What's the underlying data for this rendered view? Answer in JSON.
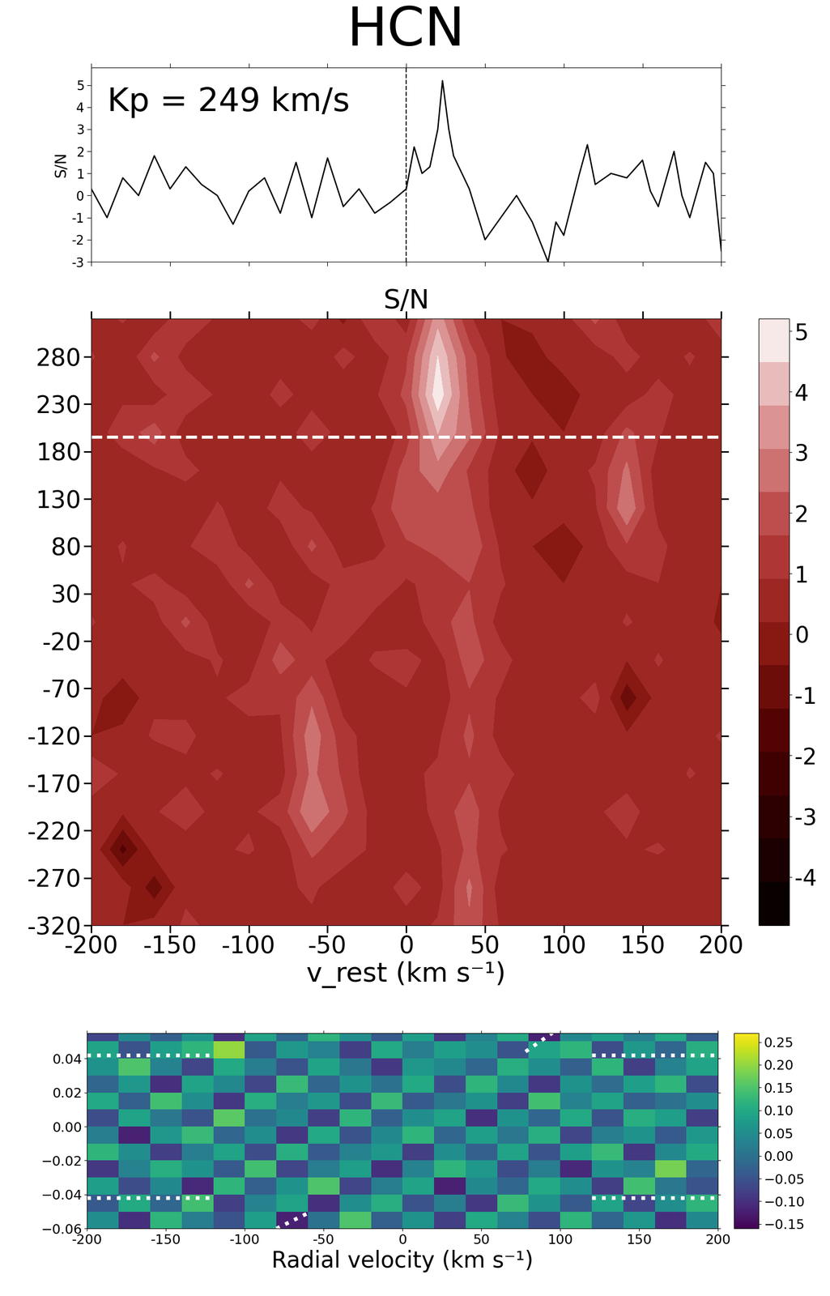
{
  "chart_data": [
    {
      "type": "line",
      "title": "HCN",
      "y_label": "S/N",
      "annotations": [
        "Kp = 249 km/s"
      ],
      "x": [
        -200,
        -190,
        -180,
        -170,
        -160,
        -150,
        -140,
        -130,
        -120,
        -110,
        -100,
        -90,
        -80,
        -70,
        -60,
        -50,
        -40,
        -30,
        -20,
        -10,
        0,
        5,
        10,
        15,
        20,
        23,
        27,
        30,
        40,
        50,
        60,
        70,
        80,
        90,
        95,
        100,
        110,
        115,
        120,
        130,
        140,
        150,
        155,
        160,
        170,
        175,
        180,
        190,
        195,
        200
      ],
      "values": [
        0.3,
        -1.0,
        0.8,
        0.0,
        1.8,
        0.3,
        1.3,
        0.5,
        0.0,
        -1.3,
        0.2,
        0.8,
        -0.8,
        1.5,
        -1.0,
        1.7,
        -0.5,
        0.3,
        -0.8,
        -0.3,
        0.3,
        2.2,
        1.0,
        1.3,
        3.0,
        5.2,
        3.0,
        1.8,
        0.3,
        -2.0,
        -1.0,
        0.0,
        -1.2,
        -3.0,
        -1.2,
        -1.8,
        1.0,
        2.3,
        0.5,
        1.0,
        0.8,
        1.6,
        0.2,
        -0.5,
        2.0,
        0.0,
        -1.0,
        1.5,
        1.0,
        -2.5
      ],
      "color": "#000000",
      "v_marker": 0,
      "xlim": [
        -200,
        200
      ],
      "xticks": [
        -200,
        -150,
        -100,
        -50,
        0,
        50,
        100,
        150,
        200
      ],
      "ylim": [
        -3,
        5.8
      ],
      "yticks": [
        -3,
        -2,
        -1,
        0,
        1,
        2,
        3,
        4,
        5
      ],
      "tick_labels": "y"
    },
    {
      "type": "contour",
      "title": "S/N",
      "x_label": "v_rest (km s⁻¹)",
      "x": [
        -200,
        -180,
        -160,
        -140,
        -120,
        -100,
        -80,
        -60,
        -40,
        -20,
        0,
        20,
        40,
        60,
        80,
        100,
        120,
        140,
        160,
        180,
        200
      ],
      "y": [
        320,
        280,
        240,
        200,
        160,
        120,
        80,
        40,
        0,
        -40,
        -80,
        -120,
        -160,
        -200,
        -240,
        -280,
        -320
      ],
      "cells": [
        [
          0.5,
          1.0,
          0.3,
          1.5,
          0.8,
          0.2,
          0.5,
          1.2,
          0.0,
          1.6,
          0.5,
          3.5,
          1.0,
          0.2,
          0.5,
          0.6,
          1.8,
          0.4,
          0.8,
          0.3,
          1.5
        ],
        [
          1.0,
          0.2,
          1.8,
          0.6,
          0.3,
          0.9,
          0.5,
          0.2,
          1.2,
          0.4,
          1.5,
          4.5,
          2.0,
          0.3,
          -0.3,
          0.8,
          0.5,
          1.2,
          0.5,
          1.0,
          0.4
        ],
        [
          0.3,
          0.8,
          0.5,
          1.5,
          0.8,
          0.3,
          1.2,
          0.5,
          0.3,
          0.8,
          1.8,
          5.0,
          2.2,
          0.5,
          0.2,
          -0.5,
          0.8,
          0.5,
          1.2,
          0.6,
          0.8
        ],
        [
          0.6,
          1.2,
          2.0,
          0.4,
          0.2,
          0.6,
          0.3,
          1.5,
          0.5,
          0.2,
          1.2,
          3.8,
          2.5,
          0.8,
          0.3,
          0.2,
          0.5,
          1.8,
          1.0,
          0.3,
          0.5
        ],
        [
          0.2,
          0.5,
          0.8,
          1.2,
          0.5,
          0.2,
          0.8,
          0.3,
          0.6,
          0.4,
          2.0,
          2.8,
          1.5,
          0.5,
          -0.2,
          0.6,
          1.0,
          2.5,
          0.4,
          0.2,
          0.8
        ],
        [
          0.8,
          0.3,
          0.5,
          0.2,
          1.0,
          0.5,
          1.2,
          0.8,
          0.2,
          1.0,
          2.2,
          2.0,
          1.8,
          0.4,
          0.3,
          0.5,
          0.8,
          3.0,
          0.6,
          0.5,
          0.3
        ],
        [
          0.4,
          1.0,
          0.2,
          0.8,
          1.5,
          0.6,
          0.3,
          1.8,
          0.5,
          0.6,
          1.5,
          1.8,
          2.2,
          0.8,
          0.2,
          -0.3,
          0.5,
          1.5,
          1.2,
          0.2,
          0.6
        ],
        [
          0.5,
          0.8,
          1.2,
          0.5,
          0.3,
          1.8,
          0.6,
          0.5,
          1.2,
          1.5,
          0.8,
          1.2,
          1.6,
          1.0,
          0.4,
          0.2,
          0.8,
          0.6,
          0.9,
          0.4,
          0.2
        ],
        [
          1.0,
          0.3,
          0.6,
          1.8,
          0.5,
          0.2,
          1.2,
          0.8,
          1.5,
          0.6,
          0.2,
          1.5,
          1.8,
          0.6,
          0.8,
          0.5,
          0.3,
          1.0,
          0.5,
          0.8,
          0.0
        ],
        [
          0.3,
          0.8,
          0.5,
          0.6,
          1.0,
          0.5,
          2.0,
          1.2,
          0.5,
          1.0,
          1.2,
          0.6,
          2.0,
          1.2,
          0.4,
          0.8,
          0.5,
          0.2,
          1.0,
          0.4,
          0.6
        ],
        [
          0.6,
          -0.5,
          0.8,
          0.5,
          0.8,
          1.2,
          1.0,
          2.2,
          0.6,
          0.5,
          0.8,
          0.5,
          1.5,
          0.8,
          0.3,
          0.6,
          1.2,
          -1.0,
          0.5,
          0.8,
          0.3
        ],
        [
          0.2,
          0.5,
          1.0,
          1.2,
          0.3,
          0.6,
          0.8,
          2.8,
          1.2,
          0.5,
          0.4,
          0.8,
          1.8,
          0.6,
          0.8,
          0.2,
          0.5,
          0.3,
          0.8,
          0.5,
          1.0
        ],
        [
          1.5,
          0.8,
          0.3,
          0.6,
          1.0,
          0.5,
          0.6,
          2.5,
          1.5,
          0.3,
          0.8,
          1.0,
          1.5,
          1.2,
          0.5,
          0.8,
          0.3,
          0.6,
          0.2,
          1.0,
          0.5
        ],
        [
          0.5,
          0.3,
          0.8,
          1.5,
          0.5,
          0.8,
          1.2,
          3.0,
          1.8,
          0.6,
          0.3,
          1.2,
          2.0,
          0.8,
          0.2,
          0.5,
          0.8,
          1.2,
          0.5,
          0.3,
          0.8
        ],
        [
          0.8,
          -1.5,
          0.5,
          0.3,
          0.8,
          1.0,
          0.5,
          1.8,
          1.2,
          0.8,
          0.5,
          0.8,
          1.8,
          1.0,
          0.6,
          0.3,
          0.5,
          0.8,
          1.0,
          0.6,
          0.2
        ],
        [
          0.3,
          0.6,
          -1.0,
          0.8,
          0.5,
          0.3,
          0.8,
          1.0,
          0.6,
          0.5,
          1.2,
          0.6,
          2.5,
          0.5,
          0.8,
          0.6,
          0.2,
          0.5,
          0.3,
          0.8,
          0.5
        ],
        [
          0.6,
          0.2,
          0.5,
          1.0,
          0.8,
          0.5,
          0.6,
          0.8,
          0.3,
          0.8,
          0.6,
          1.0,
          2.2,
          0.8,
          0.4,
          0.5,
          0.6,
          0.3,
          0.5,
          0.4,
          0.6
        ]
      ],
      "kp_marker": 195,
      "xlim": [
        -200,
        200
      ],
      "xticks": [
        -200,
        -150,
        -100,
        -50,
        0,
        50,
        100,
        150,
        200
      ],
      "ylim": [
        -320,
        320
      ],
      "yticks": [
        -320,
        -270,
        -220,
        -170,
        -120,
        -70,
        -20,
        30,
        80,
        130,
        180,
        230,
        280
      ],
      "clim": [
        -4.8,
        5.2
      ],
      "cticks": [
        -4,
        -3,
        -2,
        -1,
        0,
        1,
        2,
        3,
        4,
        5
      ]
    },
    {
      "type": "heatmap",
      "x_label": "Radial velocity (km s⁻¹)",
      "x_edges": [
        -200,
        -180,
        -160,
        -140,
        -120,
        -100,
        -80,
        -60,
        -40,
        -20,
        0,
        20,
        40,
        60,
        80,
        100,
        120,
        140,
        160,
        180,
        200
      ],
      "y_edges": [
        -0.06,
        -0.05,
        -0.04,
        -0.03,
        -0.02,
        -0.01,
        0.0,
        0.01,
        0.02,
        0.03,
        0.04,
        0.05,
        0.06
      ],
      "cells": [
        [
          0.05,
          -0.1,
          0.12,
          0.02,
          -0.05,
          0.08,
          -0.12,
          0.0,
          0.15,
          -0.03,
          0.06,
          -0.08,
          0.1,
          0.03,
          -0.06,
          0.12,
          -0.02,
          0.07,
          -0.1,
          0.04
        ],
        [
          -0.04,
          0.1,
          -0.02,
          0.14,
          -0.08,
          0.03,
          0.09,
          -0.1,
          0.05,
          0.11,
          -0.05,
          0.02,
          -0.09,
          0.13,
          0.06,
          -0.04,
          0.09,
          -0.07,
          0.05,
          0.12
        ],
        [
          0.08,
          -0.06,
          0.04,
          -0.11,
          0.12,
          -0.03,
          0.06,
          0.15,
          -0.07,
          0.02,
          0.09,
          -0.12,
          0.04,
          -0.02,
          0.1,
          0.05,
          -0.08,
          0.14,
          0.01,
          -0.05
        ],
        [
          -0.09,
          0.03,
          0.11,
          0.06,
          -0.04,
          0.14,
          -0.07,
          0.02,
          0.08,
          -0.1,
          0.03,
          0.12,
          0.07,
          -0.06,
          0.02,
          -0.11,
          0.06,
          0.03,
          0.18,
          -0.02
        ],
        [
          0.12,
          0.05,
          -0.08,
          0.02,
          0.09,
          -0.06,
          0.11,
          -0.04,
          0.03,
          0.07,
          -0.08,
          0.05,
          -0.03,
          0.09,
          -0.05,
          0.08,
          0.13,
          -0.09,
          0.04,
          0.1
        ],
        [
          0.02,
          -0.12,
          0.07,
          0.13,
          -0.02,
          0.05,
          -0.09,
          0.1,
          -0.05,
          0.04,
          0.12,
          -0.02,
          0.08,
          0.01,
          0.11,
          -0.07,
          0.02,
          0.06,
          -0.04,
          0.07
        ],
        [
          -0.06,
          0.09,
          0.01,
          -0.05,
          0.16,
          0.0,
          0.04,
          -0.08,
          0.12,
          -0.03,
          0.05,
          0.09,
          -0.1,
          0.06,
          -0.02,
          0.1,
          -0.05,
          0.11,
          0.08,
          -0.08
        ],
        [
          0.1,
          -0.03,
          0.14,
          0.05,
          -0.09,
          0.11,
          0.02,
          0.07,
          -0.06,
          0.13,
          -0.04,
          0.01,
          0.06,
          -0.08,
          0.14,
          0.03,
          0.09,
          -0.03,
          0.0,
          0.05
        ],
        [
          -0.02,
          0.07,
          -0.1,
          0.09,
          0.04,
          -0.07,
          0.13,
          -0.02,
          0.06,
          0.0,
          0.1,
          -0.06,
          0.12,
          0.04,
          -0.09,
          0.06,
          -0.01,
          0.08,
          0.12,
          -0.06
        ],
        [
          0.06,
          0.15,
          0.03,
          -0.07,
          0.1,
          0.02,
          -0.05,
          0.09,
          0.01,
          -0.09,
          0.07,
          0.04,
          -0.02,
          0.11,
          0.05,
          -0.03,
          0.12,
          -0.08,
          0.03,
          0.09
        ],
        [
          0.09,
          -0.05,
          0.08,
          0.12,
          0.2,
          -0.04,
          0.07,
          0.03,
          -0.08,
          0.1,
          0.02,
          0.08,
          0.05,
          -0.05,
          0.09,
          0.12,
          -0.06,
          0.07,
          -0.02,
          0.11
        ],
        [
          -0.07,
          0.04,
          -0.03,
          0.06,
          -0.1,
          0.09,
          -0.02,
          0.12,
          0.05,
          -0.04,
          0.08,
          -0.09,
          0.03,
          0.1,
          -0.12,
          0.04,
          0.08,
          0.02,
          0.1,
          -0.04
        ]
      ],
      "guides": [
        {
          "x": [
            -200,
            -120
          ],
          "y": [
            0.042,
            0.042
          ]
        },
        {
          "x": [
            120,
            200
          ],
          "y": [
            0.042,
            0.042
          ]
        },
        {
          "x": [
            -200,
            -120
          ],
          "y": [
            -0.042,
            -0.042
          ]
        },
        {
          "x": [
            120,
            200
          ],
          "y": [
            -0.042,
            -0.042
          ]
        },
        {
          "x": [
            -80,
            -58
          ],
          "y": [
            -0.06,
            -0.05
          ]
        },
        {
          "x": [
            78,
            95
          ],
          "y": [
            0.044,
            0.055
          ]
        }
      ],
      "xlim": [
        -200,
        200
      ],
      "xticks": [
        -200,
        -150,
        -100,
        -50,
        0,
        50,
        100,
        150,
        200
      ],
      "ylim": [
        -0.06,
        0.055
      ],
      "yticks": [
        {
          "value": -0.06,
          "label": "−0.06"
        },
        {
          "value": -0.04,
          "label": "−0.04"
        },
        {
          "value": -0.02,
          "label": "−0.02"
        },
        {
          "value": 0.0,
          "label": "0.00"
        },
        {
          "value": 0.02,
          "label": "0.02"
        },
        {
          "value": 0.04,
          "label": "0.04"
        }
      ],
      "clim": [
        -0.16,
        0.27
      ],
      "cticks": [
        {
          "value": -0.15,
          "label": "−0.15"
        },
        {
          "value": -0.1,
          "label": "−0.10"
        },
        {
          "value": -0.05,
          "label": "−0.05"
        },
        {
          "value": 0.0,
          "label": "0.00"
        },
        {
          "value": 0.05,
          "label": "0.05"
        },
        {
          "value": 0.1,
          "label": "0.10"
        },
        {
          "value": 0.15,
          "label": "0.15"
        },
        {
          "value": 0.2,
          "label": "0.20"
        },
        {
          "value": 0.25,
          "label": "0.25"
        }
      ]
    }
  ]
}
